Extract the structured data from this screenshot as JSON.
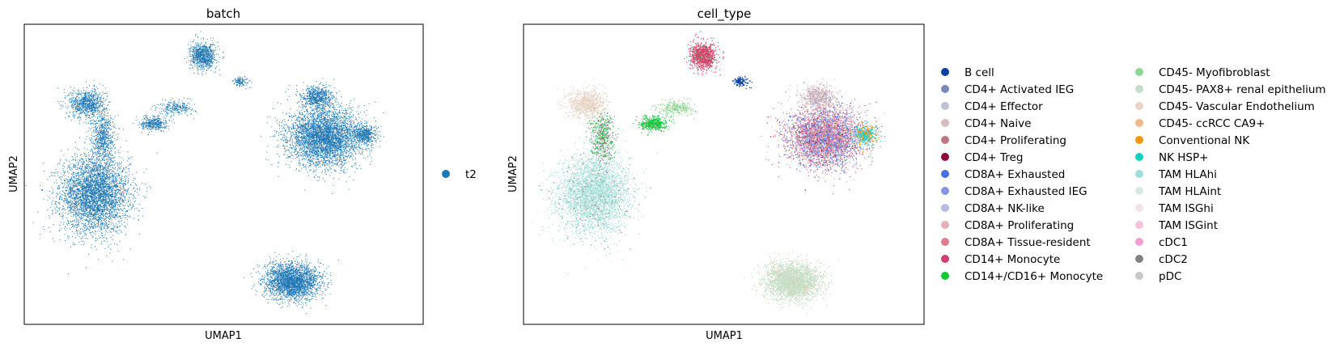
{
  "chart_data": [
    {
      "type": "scatter",
      "title": "batch",
      "xlabel": "UMAP1",
      "ylabel": "UMAP2",
      "grid": false,
      "ticks": false,
      "legend_placement": "right",
      "point_color_default": "#1f77b4",
      "series": [
        {
          "name": "t2",
          "color": "#1f77b4"
        }
      ],
      "clusters": [
        {
          "name": "left-large",
          "center": [
            -6.8,
            -2.0
          ],
          "spread": [
            1.5,
            1.6
          ],
          "n": 4200
        },
        {
          "name": "left-upper",
          "center": [
            -7.2,
            2.6
          ],
          "spread": [
            0.8,
            0.6
          ],
          "n": 900
        },
        {
          "name": "left-stem",
          "center": [
            -6.4,
            0.9
          ],
          "spread": [
            0.5,
            1.0
          ],
          "n": 700
        },
        {
          "name": "top-center",
          "center": [
            -1.1,
            5.0
          ],
          "spread": [
            0.55,
            0.55
          ],
          "n": 900
        },
        {
          "name": "mid-small-1",
          "center": [
            -3.7,
            1.6
          ],
          "spread": [
            0.55,
            0.3
          ],
          "n": 400
        },
        {
          "name": "mid-small-2",
          "center": [
            -2.5,
            2.4
          ],
          "spread": [
            0.8,
            0.3
          ],
          "n": 260
        },
        {
          "name": "top-right-small",
          "center": [
            0.9,
            3.7
          ],
          "spread": [
            0.35,
            0.2
          ],
          "n": 120
        },
        {
          "name": "right-large",
          "center": [
            5.3,
            0.9
          ],
          "spread": [
            1.6,
            1.2
          ],
          "n": 4200
        },
        {
          "name": "right-top",
          "center": [
            4.9,
            2.9
          ],
          "spread": [
            0.7,
            0.5
          ],
          "n": 700
        },
        {
          "name": "right-tail",
          "center": [
            7.4,
            1.0
          ],
          "spread": [
            0.5,
            0.4
          ],
          "n": 500
        },
        {
          "name": "bottom",
          "center": [
            3.6,
            -6.4
          ],
          "spread": [
            1.2,
            0.75
          ],
          "n": 2800
        }
      ]
    },
    {
      "type": "scatter",
      "title": "cell_type",
      "xlabel": "UMAP1",
      "ylabel": "UMAP2",
      "grid": false,
      "ticks": false,
      "legend_placement": "right (2 columns)",
      "series": [
        {
          "name": "B cell",
          "color": "#023fa5"
        },
        {
          "name": "CD4+ Activated IEG",
          "color": "#7d87b9"
        },
        {
          "name": "CD4+ Effector",
          "color": "#bec1d4"
        },
        {
          "name": "CD4+ Naive",
          "color": "#d6bcc0"
        },
        {
          "name": "CD4+ Proliferating",
          "color": "#bb7784"
        },
        {
          "name": "CD4+ Treg",
          "color": "#8e063b"
        },
        {
          "name": "CD8A+ Exhausted",
          "color": "#4a6fe3"
        },
        {
          "name": "CD8A+ Exhausted IEG",
          "color": "#8595e1"
        },
        {
          "name": "CD8A+ NK-like",
          "color": "#b5bbe3"
        },
        {
          "name": "CD8A+ Proliferating",
          "color": "#e6afb9"
        },
        {
          "name": "CD8A+ Tissue-resident",
          "color": "#e07b91"
        },
        {
          "name": "CD14+ Monocyte",
          "color": "#d33f6a"
        },
        {
          "name": "CD14+/CD16+ Monocyte",
          "color": "#11c638"
        },
        {
          "name": "CD45- Myofibroblast",
          "color": "#8dd593"
        },
        {
          "name": "CD45- PAX8+ renal epithelium",
          "color": "#c6dec7"
        },
        {
          "name": "CD45- Vascular Endothelium",
          "color": "#ead3c6"
        },
        {
          "name": "CD45- ccRCC CA9+",
          "color": "#f0b98d"
        },
        {
          "name": "Conventional NK",
          "color": "#ef9708"
        },
        {
          "name": "NK HSP+",
          "color": "#0fcfc0"
        },
        {
          "name": "TAM HLAhi",
          "color": "#9cded6"
        },
        {
          "name": "TAM HLAint",
          "color": "#d5eae7"
        },
        {
          "name": "TAM ISGhi",
          "color": "#f3e1eb"
        },
        {
          "name": "TAM ISGint",
          "color": "#f6c4e1"
        },
        {
          "name": "cDC1",
          "color": "#f79cd4"
        },
        {
          "name": "cDC2",
          "color": "#7f7f7f"
        },
        {
          "name": "pDC",
          "color": "#c7c7c7"
        }
      ]
    }
  ]
}
